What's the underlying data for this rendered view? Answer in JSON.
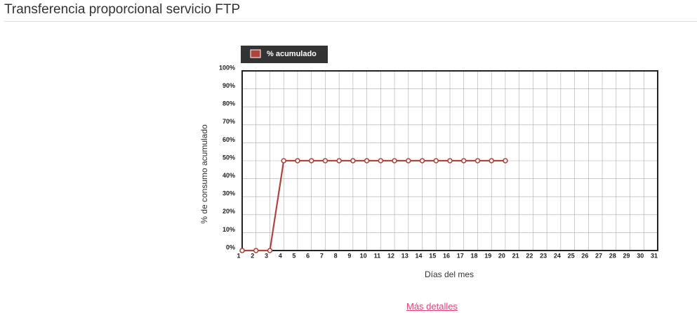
{
  "title": "Transferencia proporcional servicio FTP",
  "link": "Más detalles",
  "chart_data": {
    "type": "line",
    "y_label": "% de consumo acumulado",
    "x_label": "Días del mes",
    "x": [
      1,
      2,
      3,
      4,
      5,
      6,
      7,
      8,
      9,
      10,
      11,
      12,
      13,
      14,
      15,
      16,
      17,
      18,
      19,
      20
    ],
    "series": [
      {
        "name": "% acumulado",
        "color": "#b0443c",
        "values": [
          0,
          0,
          0,
          50,
          50,
          50,
          50,
          50,
          50,
          50,
          50,
          50,
          50,
          50,
          50,
          50,
          50,
          50,
          50,
          50
        ]
      }
    ],
    "xlim": [
      1,
      31
    ],
    "xticks": [
      1,
      2,
      3,
      4,
      5,
      6,
      7,
      8,
      9,
      10,
      11,
      12,
      13,
      14,
      15,
      16,
      17,
      18,
      19,
      20,
      21,
      22,
      23,
      24,
      25,
      26,
      27,
      28,
      29,
      30,
      31
    ],
    "ylim": [
      0,
      100
    ],
    "yticks": [
      {
        "value": 0,
        "label": "0%"
      },
      {
        "value": 10,
        "label": "10%"
      },
      {
        "value": 20,
        "label": "20%"
      },
      {
        "value": 30,
        "label": "30%"
      },
      {
        "value": 40,
        "label": "40%"
      },
      {
        "value": 50,
        "label": "50%"
      },
      {
        "value": 60,
        "label": "60%"
      },
      {
        "value": 70,
        "label": "70%"
      },
      {
        "value": 80,
        "label": "80%"
      },
      {
        "value": 90,
        "label": "90%"
      },
      {
        "value": 100,
        "label": "100%"
      }
    ],
    "grid": true
  }
}
